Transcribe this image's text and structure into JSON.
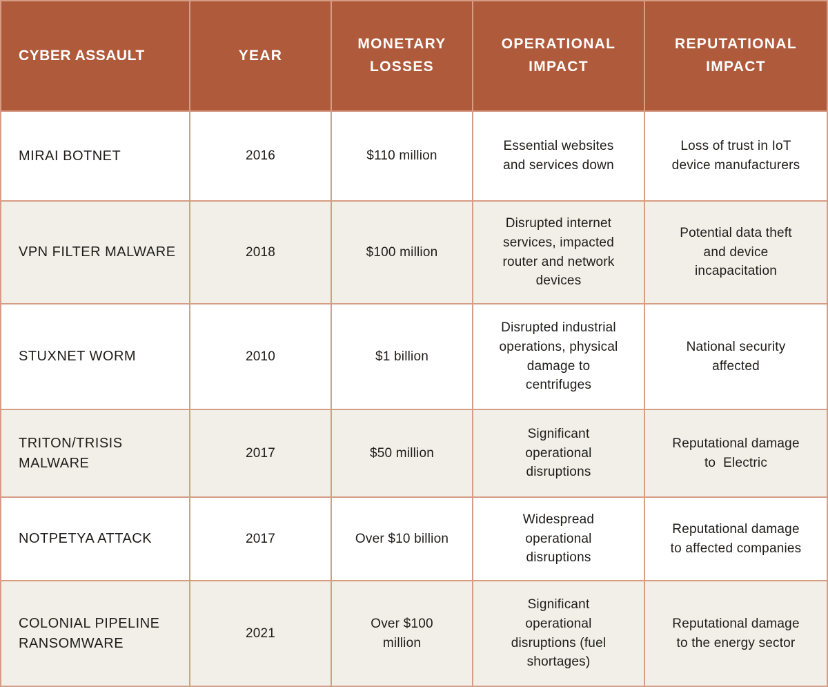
{
  "table": {
    "columns": [
      "CYBER ASSAULT",
      "YEAR",
      "MONETARY LOSSES",
      "OPERATIONAL IMPACT",
      "REPUTATIONAL IMPACT"
    ],
    "rows": [
      {
        "attack": "MIRAI BOTNET",
        "year": "2016",
        "monetary": "$110 million",
        "operational": "Essential websites and services down",
        "reputational": "Loss of trust in IoT device manufacturers"
      },
      {
        "attack": "VPN FILTER MALWARE",
        "year": "2018",
        "monetary": "$100 million",
        "operational": "Disrupted internet services, impacted router and network devices",
        "reputational": "Potential data theft and device incapacitation"
      },
      {
        "attack": "STUXNET WORM",
        "year": "2010",
        "monetary": "$1 billion",
        "operational": "Disrupted industrial operations, physical damage to centrifuges",
        "reputational": "National security affected"
      },
      {
        "attack": "TRITON/TRISIS MALWARE",
        "year": "2017",
        "monetary": "$50 million",
        "operational": "Significant operational disruptions",
        "reputational": "Reputational damage to  Electric"
      },
      {
        "attack": "NOTPETYA ATTACK",
        "year": "2017",
        "monetary": "Over $10 billion",
        "operational": "Widespread operational disruptions",
        "reputational": "Reputational damage to affected companies"
      },
      {
        "attack": "COLONIAL PIPELINE RANSOMWARE",
        "year": "2021",
        "monetary": "Over $100 million",
        "operational": "Significant operational disruptions (fuel shortages)",
        "reputational": "Reputational damage to the energy sector"
      }
    ]
  },
  "colors": {
    "header_bg": "#b05a3c",
    "header_text": "#ffffff",
    "row_bg": "#ffffff",
    "row_alt_bg": "#f2efe8",
    "border": "#d69c85",
    "body_text": "#1e1c1a"
  }
}
